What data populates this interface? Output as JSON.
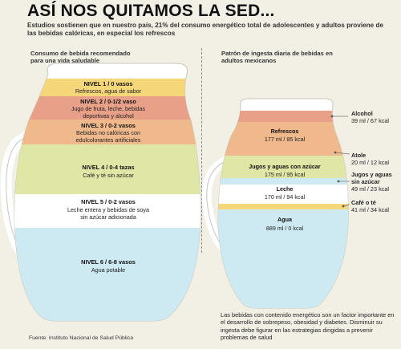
{
  "header": {
    "title": "ASÍ NOS QUITAMOS LA SED...",
    "subtitle": "Estudios sostienen que en nuestro país, 21% del consumo energético total de adolescentes y adultos proviene de las bebidas calóricas, en especial los refrescos"
  },
  "left_column": {
    "title": "Consumo de bebida recomendado para una vida saludable",
    "levels": [
      {
        "head": "NIVEL 1 / 0 vasos",
        "lines": [
          "Refrescos, agua de sabor"
        ],
        "color": "#f5d77a"
      },
      {
        "head": "NIVEL 2 / 0-1/2 vaso",
        "lines": [
          "Jugo de fruta, leche, bebidas",
          "deportivas y alcohol"
        ],
        "color": "#e8a188"
      },
      {
        "head": "NIVEL 3 / 0-2 vasos",
        "lines": [
          "Bebidas no calóricas con",
          "edulcolorantes artificiales"
        ],
        "color": "#f0b98c"
      },
      {
        "head": "NIVEL 4 / 0-4 tazas",
        "lines": [
          "Café y té sin azúcar"
        ],
        "color": "#e0e6a6"
      },
      {
        "head": "NIVEL 5 / 0-2 vasos",
        "lines": [
          "Leche entera y bebidas de soya",
          "sin azúcar adicionada"
        ],
        "color": "#ffffff"
      },
      {
        "head": "NIVEL 6 / 6-8 vasos",
        "lines": [
          "Agua potable"
        ],
        "color": "#cde9f2"
      }
    ]
  },
  "right_column": {
    "title": "Patrón de ingesta diaria de bebidas en adultos mexicanos",
    "inside": [
      {
        "name": "Refrescos",
        "value": "177 ml / 85 kcal"
      },
      {
        "name": "Jugos y aguas con azúcar",
        "value": "175 ml / 95 kcal"
      },
      {
        "name": "Leche",
        "value": "170 ml / 94 kcal"
      },
      {
        "name": "Agua",
        "value": "889 ml / 0 kcal"
      }
    ],
    "outside": [
      {
        "name": "Alcohol",
        "value": "39 ml / 67 kcal"
      },
      {
        "name": "Atole",
        "value": "20 ml / 12 kcal"
      },
      {
        "name": "Jugos y aguas sin azúcar",
        "value": "49 ml / 23 kcal"
      },
      {
        "name": "Café o té",
        "value": "41 ml / 34 kcal"
      }
    ],
    "colors": {
      "alcohol": "#e8a188",
      "refrescos": "#f0b98c",
      "atole": "#f0b98c",
      "jugos_con": "#e0e6a6",
      "jugos_sin": "#cde9f2",
      "leche": "#ffffff",
      "cafe": "#f5d77a",
      "agua": "#cde9f2"
    }
  },
  "note": "Las bebidas con contenido energético son un factor importante en el desarrollo de sobrepeso, obesidad y diabetes. Disminuir su ingesta debe  figurar en las estrategias dirigidas a prevenir problemas de salud",
  "source": "Fuente: Instituto Nacional de Salud Pública"
}
